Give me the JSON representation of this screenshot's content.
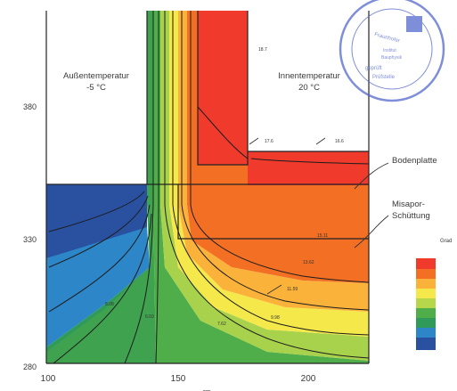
{
  "labels": {
    "outside_line1": "Außentemperatur",
    "outside_line2": "-5 °C",
    "inside_line1": "Innentemperatur",
    "inside_line2": "20 °C",
    "floor_slab": "Bodenplatte",
    "fill_line1": "Misapor-",
    "fill_line2": "Schüttung",
    "grad": "Grad"
  },
  "axes": {
    "x_ticks": [
      "100",
      "150",
      "200"
    ],
    "y_ticks": [
      "380",
      "330",
      "280"
    ],
    "x_cut_label": "cm"
  },
  "isotherm_labels": [
    "18.7",
    "17.6",
    "16.6",
    "15.11",
    "13.62",
    "11.59",
    "9.98",
    "8.08",
    "6.03",
    "7.62"
  ],
  "stamp": {
    "line1": "Fraunhofer",
    "line2": "Institut",
    "line3": "Bauphysik",
    "line4": "geprüft",
    "line5": "Prüfstelle"
  },
  "legend_colors": [
    "#ef3a2c",
    "#f26f24",
    "#fbb23a",
    "#f5e84a",
    "#b6d64b",
    "#4fae4a",
    "#2f9a5a",
    "#2c86c8",
    "#2a50a0"
  ],
  "colors": {
    "blue_dark": "#2a50a0",
    "blue": "#2c86c8",
    "teal": "#2f9a5a",
    "green": "#4fae4a",
    "light_green": "#a9d24c",
    "yellow": "#f5e84a",
    "light_orange": "#fbb23a",
    "orange": "#f26f24",
    "red": "#ef3a2c",
    "stamp": "#4a5fc8"
  }
}
